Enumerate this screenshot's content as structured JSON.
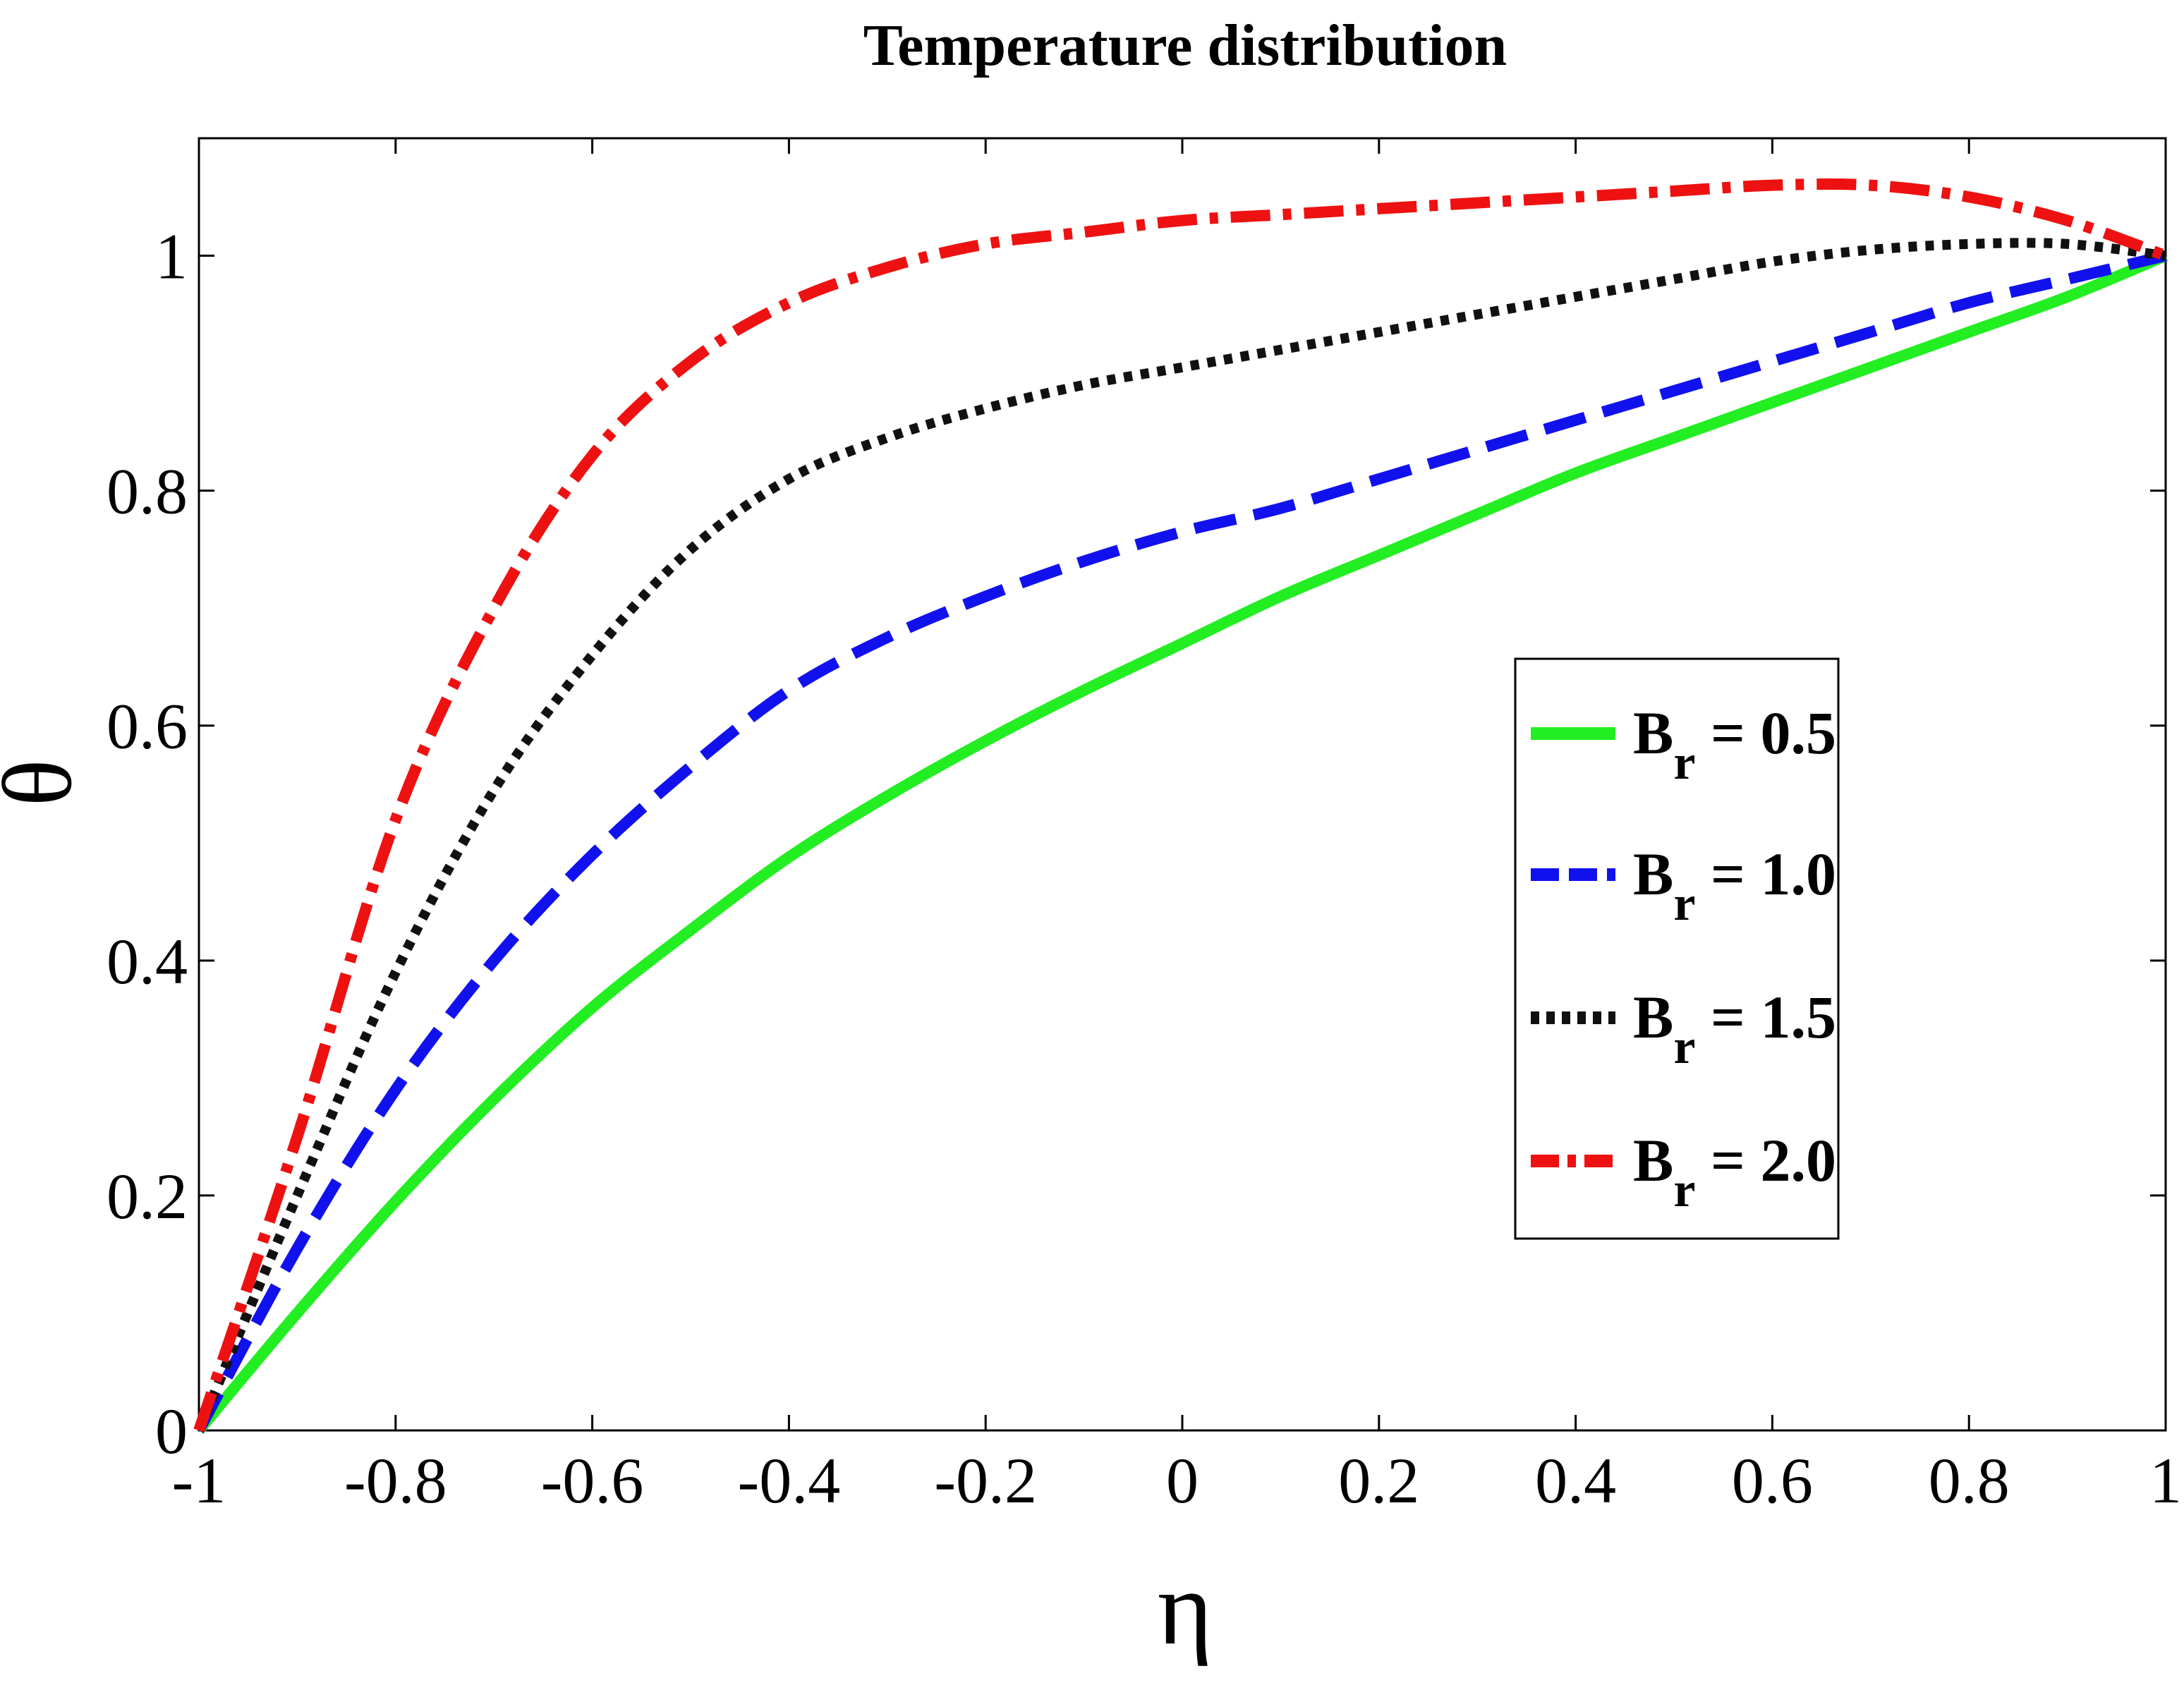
{
  "chart_data": {
    "type": "line",
    "title": "Temperature distribution",
    "xlabel": "η",
    "ylabel": "θ",
    "xlim": [
      -1,
      1
    ],
    "ylim": [
      0,
      1.1
    ],
    "grid": false,
    "legend_position": "right",
    "x_ticks": [
      -1,
      -0.8,
      -0.6,
      -0.4,
      -0.2,
      0,
      0.2,
      0.4,
      0.6,
      0.8,
      1
    ],
    "x_tick_labels": [
      "-1",
      "-0.8",
      "-0.6",
      "-0.4",
      "-0.2",
      "0",
      "0.2",
      "0.4",
      "0.6",
      "0.8",
      "1"
    ],
    "y_ticks": [
      0,
      0.2,
      0.4,
      0.6,
      0.8,
      1
    ],
    "y_tick_labels": [
      "0",
      "0.2",
      "0.4",
      "0.6",
      "0.8",
      "1"
    ],
    "x": [
      -1,
      -0.9,
      -0.8,
      -0.7,
      -0.6,
      -0.5,
      -0.4,
      -0.3,
      -0.2,
      -0.1,
      0,
      0.1,
      0.2,
      0.3,
      0.4,
      0.5,
      0.6,
      0.7,
      0.8,
      0.9,
      1
    ],
    "series": [
      {
        "name": "Br = 0.5",
        "legend_base": "B",
        "legend_sub": "r",
        "legend_value": " = 0.5",
        "color": "#22ee22",
        "style": "solid",
        "values": [
          0,
          0.1,
          0.195,
          0.282,
          0.36,
          0.426,
          0.488,
          0.54,
          0.587,
          0.63,
          0.67,
          0.71,
          0.745,
          0.78,
          0.815,
          0.845,
          0.875,
          0.905,
          0.935,
          0.965,
          1.0
        ]
      },
      {
        "name": "Br = 1.0",
        "legend_base": "B",
        "legend_sub": "r",
        "legend_value": " = 1.0",
        "color": "#1111ee",
        "style": "dashed",
        "values": [
          0,
          0.155,
          0.29,
          0.4,
          0.49,
          0.565,
          0.63,
          0.675,
          0.71,
          0.74,
          0.765,
          0.785,
          0.81,
          0.835,
          0.86,
          0.885,
          0.91,
          0.935,
          0.96,
          0.98,
          1.0
        ]
      },
      {
        "name": "Br = 1.5",
        "legend_base": "B",
        "legend_sub": "r",
        "legend_value": " = 1.5",
        "color": "#111111",
        "style": "dotted",
        "values": [
          0,
          0.2,
          0.39,
          0.545,
          0.66,
          0.75,
          0.81,
          0.845,
          0.87,
          0.89,
          0.905,
          0.92,
          0.935,
          0.95,
          0.965,
          0.98,
          0.995,
          1.005,
          1.01,
          1.01,
          1.0
        ]
      },
      {
        "name": "Br = 2.0",
        "legend_base": "B",
        "legend_sub": "r",
        "legend_value": " = 2.0",
        "color": "#ee1111",
        "style": "dashdot",
        "values": [
          0,
          0.25,
          0.52,
          0.7,
          0.83,
          0.91,
          0.96,
          0.99,
          1.01,
          1.02,
          1.03,
          1.035,
          1.04,
          1.045,
          1.05,
          1.055,
          1.06,
          1.06,
          1.05,
          1.03,
          1.0
        ]
      }
    ]
  }
}
